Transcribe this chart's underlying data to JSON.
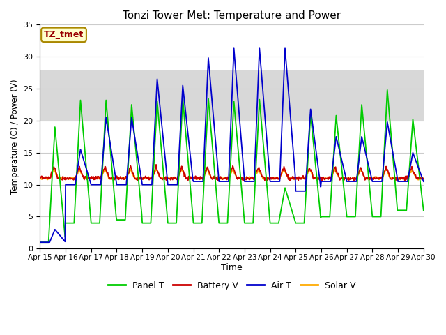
{
  "title": "Tonzi Tower Met: Temperature and Power",
  "xlabel": "Time",
  "ylabel": "Temperature (C) / Power (V)",
  "xlim": [
    0,
    360
  ],
  "ylim": [
    0,
    35
  ],
  "yticks": [
    0,
    5,
    10,
    15,
    20,
    25,
    30,
    35
  ],
  "xtick_labels": [
    "Apr 15",
    "Apr 16",
    "Apr 17",
    "Apr 18",
    "Apr 19",
    "Apr 20",
    "Apr 21",
    "Apr 22",
    "Apr 23",
    "Apr 24",
    "Apr 25",
    "Apr 26",
    "Apr 27",
    "Apr 28",
    "Apr 29",
    "Apr 30"
  ],
  "xtick_positions": [
    0,
    24,
    48,
    72,
    96,
    120,
    144,
    168,
    192,
    216,
    240,
    264,
    288,
    312,
    336,
    360
  ],
  "colors": {
    "panel_t": "#00cc00",
    "battery_v": "#cc0000",
    "air_t": "#0000cc",
    "solar_v": "#ffaa00"
  },
  "legend_labels": [
    "Panel T",
    "Battery V",
    "Air T",
    "Solar V"
  ],
  "annotation_text": "TZ_tmet",
  "annotation_bg": "#ffffcc",
  "annotation_border": "#aa8800",
  "annotation_color": "#990000",
  "plot_bg": "#ffffff",
  "grid_color": "#cccccc",
  "shaded_low": 20,
  "shaded_high": 28,
  "shaded_color": "#d8d8d8"
}
